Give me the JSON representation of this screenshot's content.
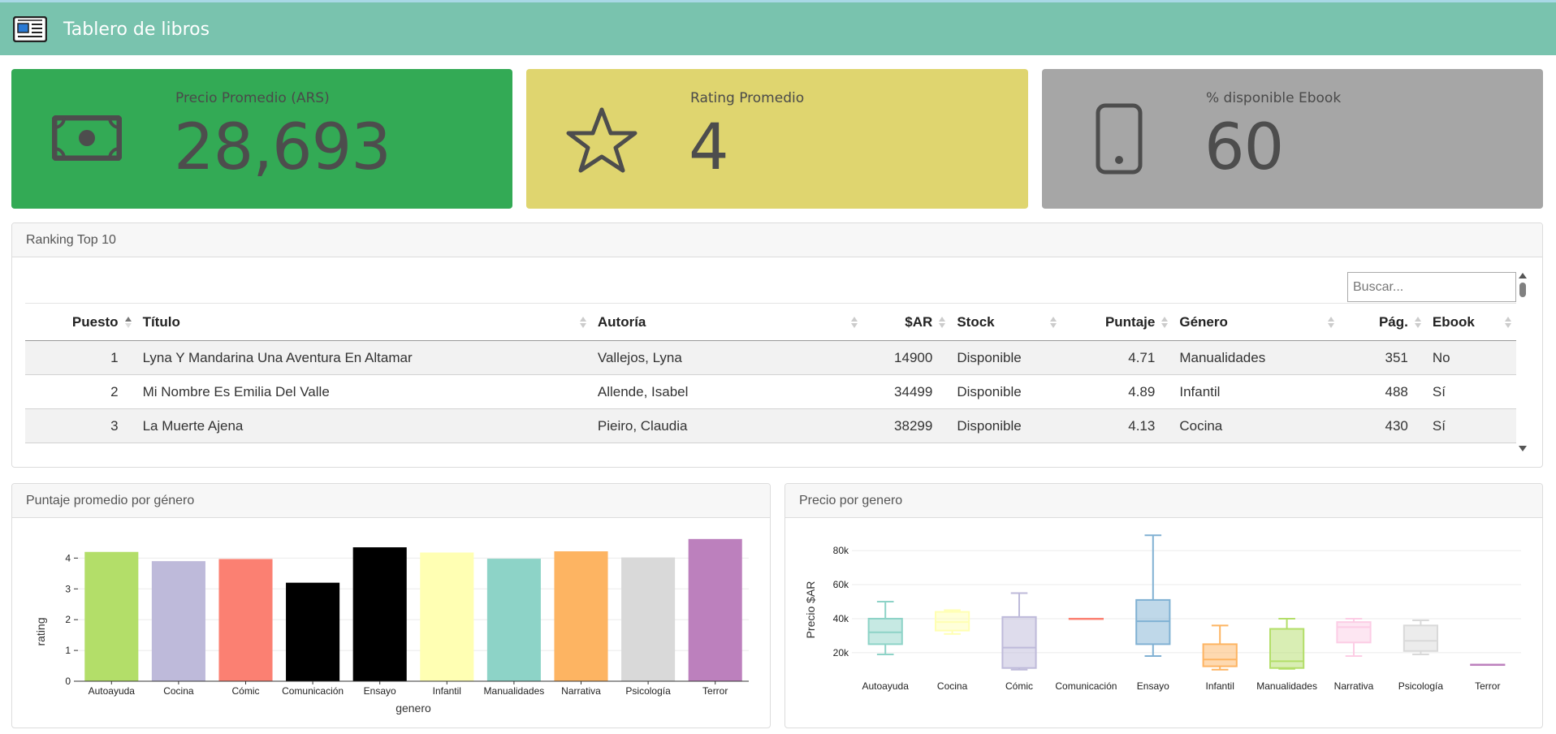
{
  "header": {
    "title": "Tablero de libros",
    "icon": "newspaper-icon"
  },
  "cards": [
    {
      "label": "Precio Promedio (ARS)",
      "value": "28,693",
      "bg": "#33aa55",
      "icon": "money-icon"
    },
    {
      "label": "Rating Promedio",
      "value": "4",
      "bg": "#dfd56f",
      "icon": "star-icon"
    },
    {
      "label": "% disponible Ebook",
      "value": "60",
      "bg": "#a6a6a6",
      "icon": "mobile-icon"
    }
  ],
  "ranking": {
    "title": "Ranking Top 10",
    "search_placeholder": "Buscar...",
    "columns": [
      "Puesto",
      "Título",
      "Autoría",
      "$AR",
      "Stock",
      "Puntaje",
      "Género",
      "Pág.",
      "Ebook"
    ],
    "rows": [
      [
        "1",
        "Lyna Y Mandarina Una Aventura En Altamar",
        "Vallejos, Lyna",
        "14900",
        "Disponible",
        "4.71",
        "Manualidades",
        "351",
        "No"
      ],
      [
        "2",
        "Mi Nombre Es Emilia Del Valle",
        "Allende, Isabel",
        "34499",
        "Disponible",
        "4.89",
        "Infantil",
        "488",
        "Sí"
      ],
      [
        "3",
        "La Muerte Ajena",
        "Pieiro, Claudia",
        "38299",
        "Disponible",
        "4.13",
        "Cocina",
        "430",
        "Sí"
      ]
    ]
  },
  "bar_panel": {
    "title": "Puntaje promedio por género"
  },
  "box_panel": {
    "title": "Precio por genero"
  },
  "chart_data": [
    {
      "type": "bar",
      "xlabel": "genero",
      "ylabel": "rating",
      "ylim": [
        0,
        4.8
      ],
      "yticks": [
        0,
        1,
        2,
        3,
        4
      ],
      "categories": [
        "Autoayuda",
        "Cocina",
        "Cómic",
        "Comunicación",
        "Ensayo",
        "Infantil",
        "Manualidades",
        "Narrativa",
        "Psicología",
        "Terror"
      ],
      "values": [
        4.2,
        3.9,
        3.97,
        3.2,
        4.35,
        4.18,
        3.98,
        4.22,
        4.02,
        4.62
      ],
      "colors": [
        "#b3de69",
        "#bebada",
        "#fb8072",
        "#000000",
        "#000000",
        "#ffffb3",
        "#8dd3c7",
        "#fdb462",
        "#d9d9d9",
        "#bc80bd"
      ]
    },
    {
      "type": "box",
      "xlabel": "",
      "ylabel": "Precio $AR",
      "ylim": [
        8000,
        92000
      ],
      "ytick_values": [
        20000,
        40000,
        60000,
        80000
      ],
      "ytick_labels": [
        "20k",
        "40k",
        "60k",
        "80k"
      ],
      "categories": [
        "Autoayuda",
        "Cocina",
        "Cómic",
        "Comunicación",
        "Ensayo",
        "Infantil",
        "Manualidades",
        "Narrativa",
        "Psicología",
        "Terror"
      ],
      "boxes": [
        {
          "min": 19000,
          "q1": 25000,
          "median": 32000,
          "q3": 40000,
          "max": 50000
        },
        {
          "min": 31000,
          "q1": 33000,
          "median": 38000,
          "q3": 44000,
          "max": 45000
        },
        {
          "min": 10000,
          "q1": 11000,
          "median": 23000,
          "q3": 41000,
          "max": 55000
        },
        {
          "min": 40000,
          "q1": 40000,
          "median": 40000,
          "q3": 40000,
          "max": 40000
        },
        {
          "min": 18000,
          "q1": 25000,
          "median": 38500,
          "q3": 51000,
          "max": 89000
        },
        {
          "min": 10000,
          "q1": 12000,
          "median": 16000,
          "q3": 25000,
          "max": 36000
        },
        {
          "min": 10500,
          "q1": 11000,
          "median": 15000,
          "q3": 34000,
          "max": 40000
        },
        {
          "min": 18000,
          "q1": 26000,
          "median": 35000,
          "q3": 38000,
          "max": 40000
        },
        {
          "min": 19000,
          "q1": 21000,
          "median": 27000,
          "q3": 36000,
          "max": 39000
        },
        {
          "min": 13000,
          "q1": 13000,
          "median": 13000,
          "q3": 13000,
          "max": 13000
        }
      ],
      "colors": [
        "#8dd3c7",
        "#ffffb3",
        "#bebada",
        "#fb8072",
        "#80b1d3",
        "#fdb462",
        "#b3de69",
        "#fccde5",
        "#d9d9d9",
        "#bc80bd"
      ]
    }
  ]
}
